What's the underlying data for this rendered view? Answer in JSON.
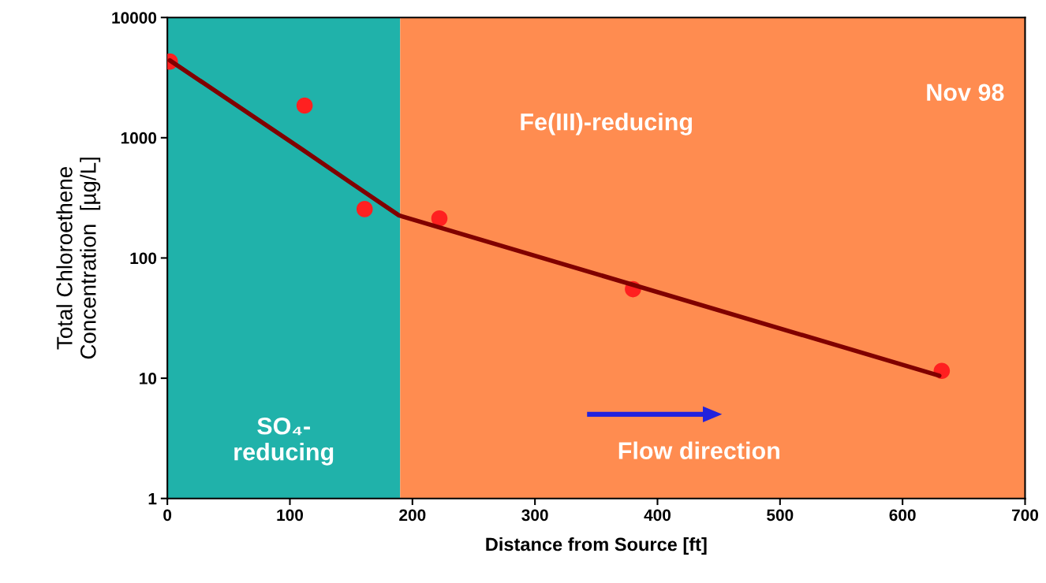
{
  "chart_data": {
    "type": "scatter",
    "xlabel": "Distance from Source [ft]",
    "ylabel": "Total Chloroethene\nConcentration  [µg/L]",
    "log": "y",
    "xlim": [
      0,
      700
    ],
    "xticks": [
      0,
      100,
      200,
      300,
      400,
      500,
      600,
      700
    ],
    "ylim": [
      1,
      10000
    ],
    "yticks": [
      1,
      10,
      100,
      1000,
      10000
    ],
    "grid": false,
    "series": [
      {
        "type": "line",
        "color": "#800000",
        "x": [
          2,
          110,
          150,
          189,
          630
        ],
        "values": [
          4400,
          800,
          420,
          226,
          10.5
        ],
        "marker": "none"
      },
      {
        "type": "scatter",
        "color": "#ff2020",
        "x": [
          2,
          112,
          161,
          222,
          380,
          632
        ],
        "values": [
          4300,
          1850,
          255,
          213,
          55,
          11.5
        ],
        "marker": "circle"
      }
    ],
    "bands": [
      {
        "axis": "x",
        "from": 0,
        "to": 190,
        "label": "SO₄-\nreducing",
        "color": "#20b2aa"
      },
      {
        "axis": "x",
        "from": 190,
        "to": 700,
        "label": "Fe(III)-reducing",
        "color": "#ff8c50"
      }
    ],
    "annotations": [
      "Nov 98",
      "Flow direction"
    ]
  }
}
